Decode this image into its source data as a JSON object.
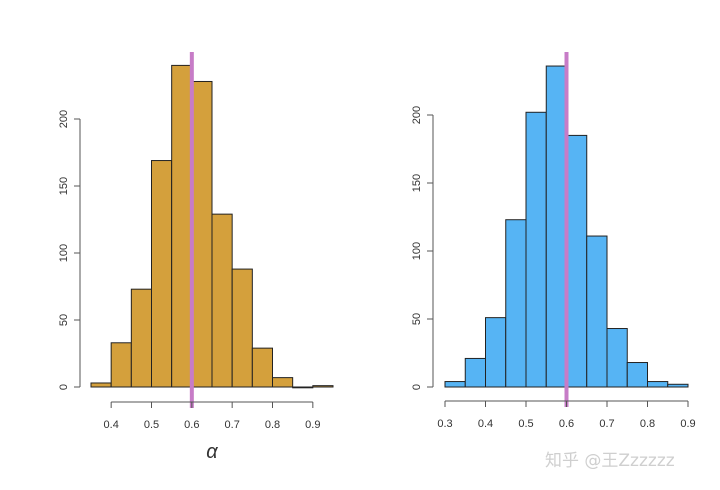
{
  "chart_data": [
    {
      "type": "bar",
      "subtype": "histogram",
      "xlabel": "α",
      "ylabel": "",
      "bin_edges": [
        0.35,
        0.4,
        0.45,
        0.5,
        0.55,
        0.6,
        0.65,
        0.7,
        0.75,
        0.8,
        0.85,
        0.9,
        0.95
      ],
      "values": [
        3,
        33,
        73,
        169,
        240,
        228,
        129,
        88,
        29,
        7,
        0,
        1
      ],
      "xlim": [
        0.35,
        0.95
      ],
      "ylim": [
        0,
        240
      ],
      "x_ticks": [
        "0.4",
        "0.5",
        "0.6",
        "0.7",
        "0.8",
        "0.9"
      ],
      "y_ticks": [
        "0",
        "50",
        "100",
        "150",
        "200"
      ],
      "vline": 0.6,
      "bar_color": "#D4A03C",
      "vline_color": "#C77CC7",
      "grid": false
    },
    {
      "type": "bar",
      "subtype": "histogram",
      "xlabel": "",
      "ylabel": "",
      "bin_edges": [
        0.3,
        0.35,
        0.4,
        0.45,
        0.5,
        0.55,
        0.6,
        0.65,
        0.7,
        0.75,
        0.8,
        0.85,
        0.9
      ],
      "values": [
        4,
        21,
        51,
        123,
        202,
        236,
        185,
        111,
        43,
        18,
        4,
        2
      ],
      "xlim": [
        0.3,
        0.9
      ],
      "ylim": [
        0,
        236
      ],
      "x_ticks": [
        "0.3",
        "0.4",
        "0.5",
        "0.6",
        "0.7",
        "0.8",
        "0.9"
      ],
      "y_ticks": [
        "0",
        "50",
        "100",
        "150",
        "200"
      ],
      "vline": 0.6,
      "bar_color": "#56B4F4",
      "vline_color": "#C77CC7",
      "grid": false
    }
  ],
  "watermark": "知乎 @王Zzzzzz"
}
